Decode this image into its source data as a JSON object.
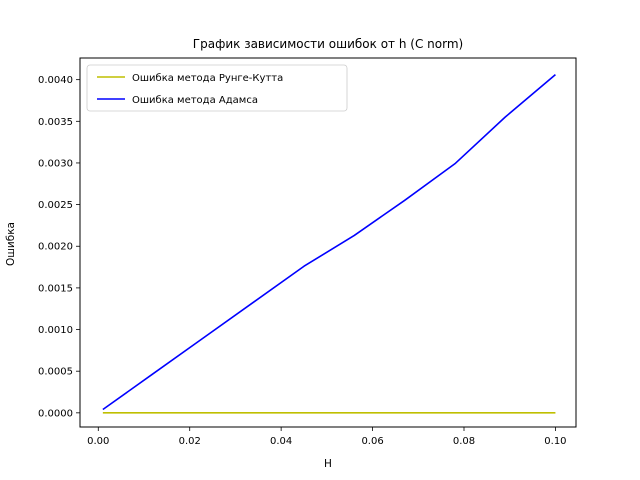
{
  "chart_data": {
    "type": "line",
    "title": "График зависимости ошибок от h (C norm)",
    "xlabel": "H",
    "ylabel": "Ошибка",
    "xlim": [
      -0.004,
      0.1045
    ],
    "ylim": [
      -0.00017,
      0.00426
    ],
    "xticks": [
      0.0,
      0.02,
      0.04,
      0.06,
      0.08,
      0.1
    ],
    "xtick_labels": [
      "0.00",
      "0.02",
      "0.04",
      "0.06",
      "0.08",
      "0.10"
    ],
    "yticks": [
      0.0,
      0.0005,
      0.001,
      0.0015,
      0.002,
      0.0025,
      0.003,
      0.0035,
      0.004
    ],
    "ytick_labels": [
      "0.0000",
      "0.0005",
      "0.0010",
      "0.0015",
      "0.0020",
      "0.0025",
      "0.0030",
      "0.0035",
      "0.0040"
    ],
    "grid": false,
    "legend_position": "top-left",
    "series": [
      {
        "name": "Ошибка метода Рунге-Кутта",
        "color": "#bfbf00",
        "x": [
          0.001,
          0.012,
          0.023,
          0.034,
          0.045,
          0.056,
          0.067,
          0.078,
          0.089,
          0.1
        ],
        "y": [
          0.0,
          0.0,
          0.0,
          0.0,
          0.0,
          0.0,
          0.0,
          0.0,
          0.0,
          0.0
        ]
      },
      {
        "name": "Ошибка метода Адамса",
        "color": "#0000ff",
        "x": [
          0.001,
          0.012,
          0.023,
          0.034,
          0.045,
          0.056,
          0.067,
          0.078,
          0.089,
          0.1
        ],
        "y": [
          4e-05,
          0.00047,
          0.0009,
          0.00133,
          0.00176,
          0.00213,
          0.00255,
          0.00299,
          0.00355,
          0.00406
        ]
      }
    ]
  }
}
